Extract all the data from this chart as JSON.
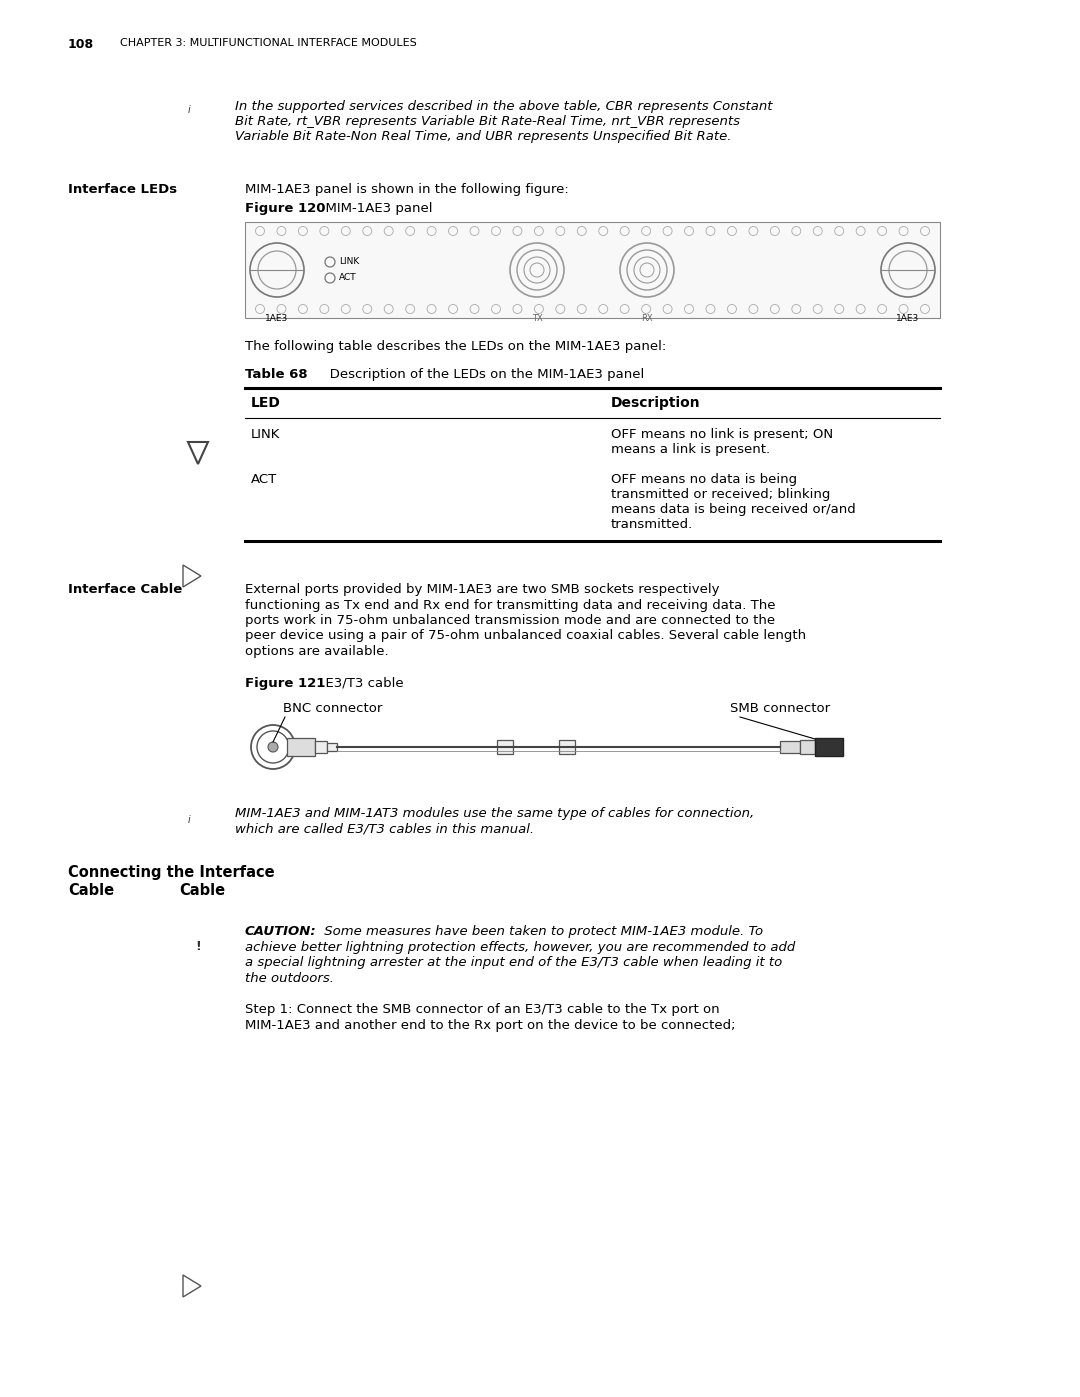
{
  "page_number": "108",
  "chapter_header": "CHAPTER 3: MULTIFUNCTIONAL INTERFACE MODULES",
  "bg_color": "#ffffff",
  "note_text_1_line1": "In the supported services described in the above table, CBR represents Constant",
  "note_text_1_line2": "Bit Rate, rt_VBR represents Variable Bit Rate-Real Time, nrt_VBR represents",
  "note_text_1_line3": "Variable Bit Rate-Non Real Time, and UBR represents Unspecified Bit Rate.",
  "interface_leds_label": "Interface LEDs",
  "interface_leds_text": "MIM-1AE3 panel is shown in the following figure:",
  "figure120_label": "Figure 120",
  "figure120_title": "  MIM-1AE3 panel",
  "table_intro": "The following table describes the LEDs on the MIM-1AE3 panel:",
  "table68_label": "Table 68",
  "table68_title": "   Description of the LEDs on the MIM-1AE3 panel",
  "col1_header": "LED",
  "col2_header": "Description",
  "row1_col1": "LINK",
  "row1_col2_line1": "OFF means no link is present; ON",
  "row1_col2_line2": "means a link is present.",
  "row2_col1": "ACT",
  "row2_col2_line1": "OFF means no data is being",
  "row2_col2_line2": "transmitted or received; blinking",
  "row2_col2_line3": "means data is being received or/and",
  "row2_col2_line4": "transmitted.",
  "interface_cable_label": "Interface Cable",
  "interface_cable_line1": "External ports provided by MIM-1AE3 are two SMB sockets respectively",
  "interface_cable_line2": "functioning as Tx end and Rx end for transmitting data and receiving data. The",
  "interface_cable_line3": "ports work in 75-ohm unbalanced transmission mode and are connected to the",
  "interface_cable_line4": "peer device using a pair of 75-ohm unbalanced coaxial cables. Several cable length",
  "interface_cable_line5": "options are available.",
  "figure121_label": "Figure 121",
  "figure121_title": "  E3/T3 cable",
  "bnc_label": "BNC connector",
  "smb_label": "SMB connector",
  "note_text_2_line1": "MIM-1AE3 and MIM-1AT3 modules use the same type of cables for connection,",
  "note_text_2_line2": "which are called E3/T3 cables in this manual.",
  "connecting_label_1": "Connecting the Interface",
  "connecting_label_2": "Cable",
  "caution_label": "CAUTION:",
  "caution_line1": " Some measures have been taken to protect MIM-1AE3 module. To",
  "caution_line2": "achieve better lightning protection effects, however, you are recommended to add",
  "caution_line3": "a special lightning arrester at the input end of the E3/T3 cable when leading it to",
  "caution_line4": "the outdoors.",
  "step1_line1": "Step 1: Connect the SMB connector of an E3/T3 cable to the Tx port on",
  "step1_line2": "MIM-1AE3 and another end to the Rx port on the device to be connected;"
}
